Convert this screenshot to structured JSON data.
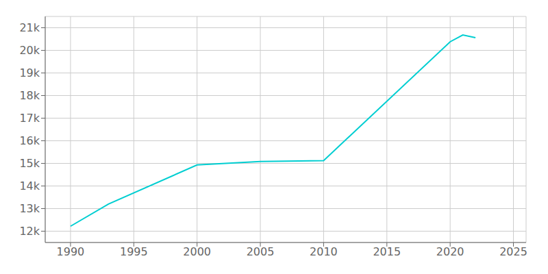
{
  "chart_data": {
    "type": "line",
    "x": [
      1990,
      1993,
      2000,
      2005,
      2010,
      2020,
      2021,
      2022
    ],
    "values": [
      12220,
      13200,
      14930,
      15080,
      15120,
      20380,
      20680,
      20560
    ],
    "color": "#00CED1",
    "xlim": [
      1988,
      2026
    ],
    "ylim": [
      11500,
      21500
    ],
    "xticks": [
      1990,
      1995,
      2000,
      2005,
      2010,
      2015,
      2020,
      2025
    ],
    "yticks": [
      {
        "value": 12000,
        "label": "12k"
      },
      {
        "value": 13000,
        "label": "13k"
      },
      {
        "value": 14000,
        "label": "14k"
      },
      {
        "value": 15000,
        "label": "15k"
      },
      {
        "value": 16000,
        "label": "16k"
      },
      {
        "value": 17000,
        "label": "17k"
      },
      {
        "value": 18000,
        "label": "18k"
      },
      {
        "value": 19000,
        "label": "19k"
      },
      {
        "value": 20000,
        "label": "20k"
      },
      {
        "value": 21000,
        "label": "21k"
      }
    ],
    "grid": true
  }
}
